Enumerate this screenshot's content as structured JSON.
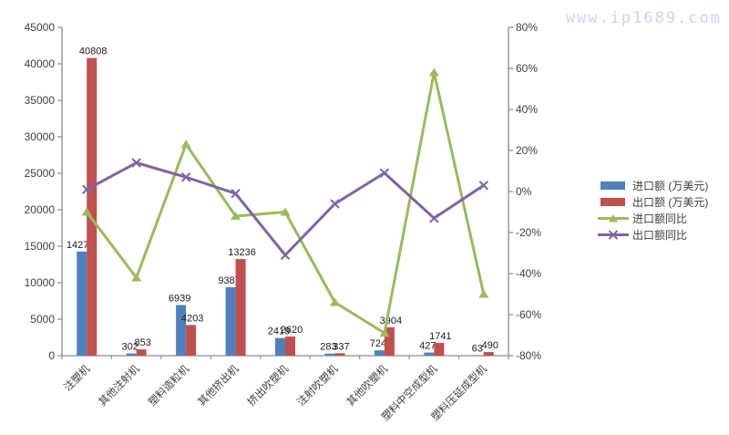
{
  "watermark": {
    "text": "www.ip1689.com",
    "color": "#ccd2f4"
  },
  "legend": {
    "items": [
      {
        "label": "进口额 (万美元)",
        "type": "bar",
        "color": "#4F81BD"
      },
      {
        "label": "出口额 (万美元)",
        "type": "bar",
        "color": "#C0504D"
      },
      {
        "label": "进口额同比",
        "type": "line-triangle",
        "color": "#9BBB59"
      },
      {
        "label": "出口额同比",
        "type": "line-x",
        "color": "#8064A2"
      }
    ]
  },
  "chart_data": {
    "type": "bar",
    "subtype": "bar-line-combo",
    "title": "",
    "grid": false,
    "legend_position": "right",
    "categories": [
      "注塑机",
      "其他注射机",
      "塑料造粒机",
      "其他挤出机",
      "挤出吹塑机",
      "注射吹塑机",
      "其他吹塑机",
      "塑料中空成型机",
      "塑料压延成型机"
    ],
    "series": [
      {
        "name": "进口额 (万美元)",
        "type": "bar",
        "axis": "left",
        "color": "#4F81BD",
        "marker": "none",
        "values": [
          14270,
          302,
          6939,
          9387,
          2419,
          283,
          724,
          427,
          63
        ]
      },
      {
        "name": "出口额 (万美元)",
        "type": "bar",
        "axis": "left",
        "color": "#C0504D",
        "marker": "none",
        "values": [
          40808,
          853,
          4203,
          13236,
          2620,
          337,
          3904,
          1741,
          490
        ]
      },
      {
        "name": "进口额同比",
        "type": "line",
        "axis": "right",
        "color": "#9BBB59",
        "marker": "triangle",
        "values": [
          -10,
          -42,
          23,
          -12,
          -10,
          -54,
          -69,
          58,
          -50
        ]
      },
      {
        "name": "出口额同比",
        "type": "line",
        "axis": "right",
        "color": "#8064A2",
        "marker": "x",
        "values": [
          1,
          14,
          7,
          -1,
          -31,
          -6,
          9,
          -13,
          3
        ]
      }
    ],
    "left_axis": {
      "min": 0,
      "max": 45000,
      "step": 5000,
      "tick_labels": [
        "45000",
        "40000",
        "35000",
        "30000",
        "25000",
        "20000",
        "15000",
        "10000",
        "5000",
        "0"
      ]
    },
    "right_axis": {
      "min": -80,
      "max": 80,
      "step": 20,
      "tick_labels": [
        "80%",
        "60%",
        "40%",
        "20%",
        "0%",
        "-20%",
        "-40%",
        "-60%",
        "-80%"
      ]
    },
    "xlabel": "",
    "ylabel": "",
    "bar_data_labels_shown": true,
    "axis_color": "#8c8c8c",
    "tick_label_color": "#3f3f3f",
    "data_label_color": "#1a1a1a"
  }
}
